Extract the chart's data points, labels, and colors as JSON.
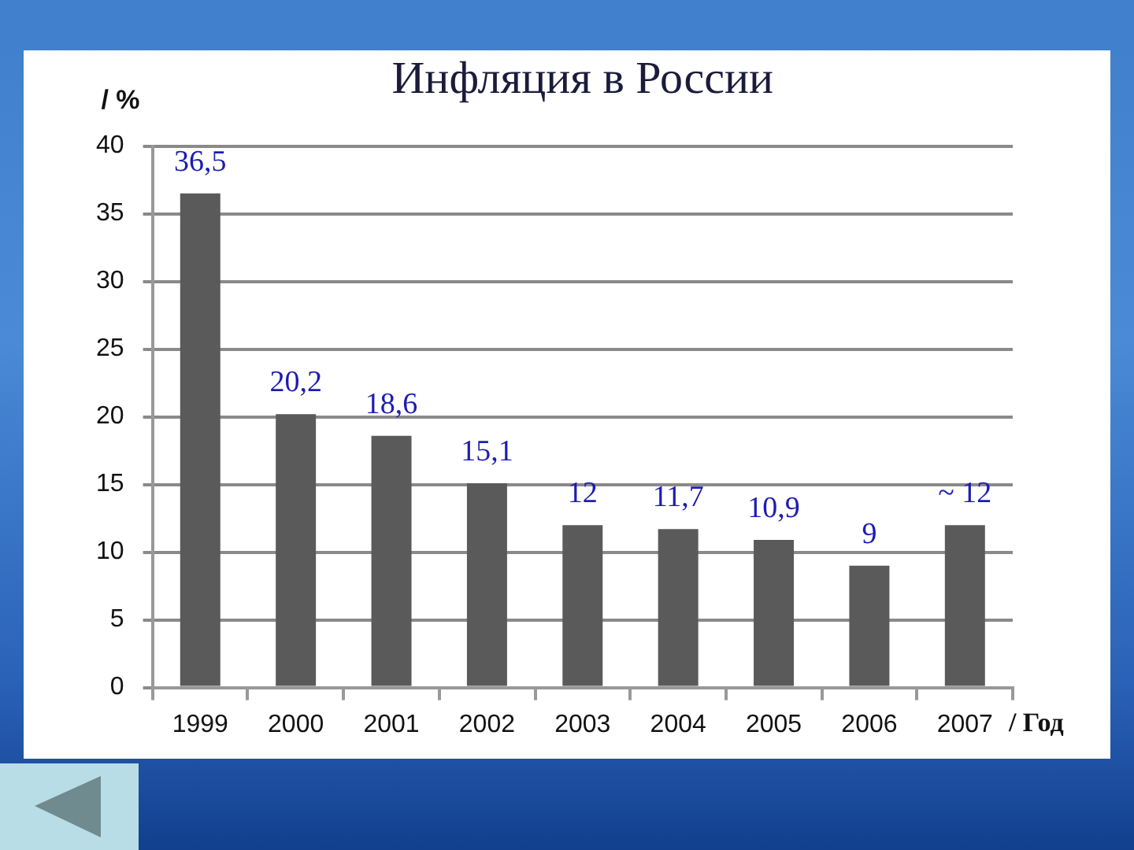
{
  "chart_data": {
    "type": "bar",
    "title": "Инфляция в России",
    "xlabel": "/ Год",
    "ylabel": "/ %",
    "categories": [
      "1999",
      "2000",
      "2001",
      "2002",
      "2003",
      "2004",
      "2005",
      "2006",
      "2007"
    ],
    "values": [
      36.5,
      20.2,
      18.6,
      15.1,
      12,
      11.7,
      10.9,
      9,
      12
    ],
    "color": "#5a5a5a",
    "value_labels": [
      "36,5",
      "20,2",
      "18,6",
      "15,1",
      "12",
      "11,7",
      "10,9",
      "9",
      "~ 12"
    ],
    "ylim": [
      0,
      40
    ],
    "yticks": [
      0,
      5,
      10,
      15,
      20,
      25,
      30,
      35,
      40
    ],
    "grid": "y"
  }
}
